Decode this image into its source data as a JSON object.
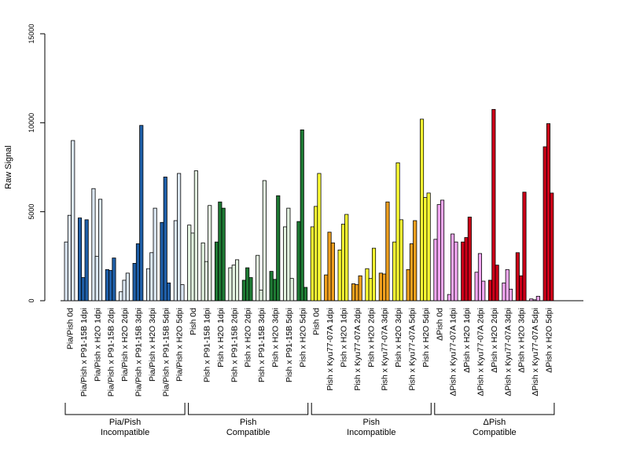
{
  "chart_data": {
    "type": "bar",
    "title": "",
    "xlabel": "",
    "ylabel": "Raw Signal",
    "ylim": [
      0,
      15000
    ],
    "yticks": [
      "0",
      "5000",
      "10000",
      "15000"
    ],
    "grid": false,
    "legend": "none",
    "categories": [
      "Pia/Pish 0d",
      "Pia/Pish x P91-15B 1dpi",
      "Pia/Pish x H2O 1dpi",
      "Pia/Pish x P91-15B 2dpi",
      "Pia/Pish x H2O 2dpi",
      "Pia/Pish x P91-15B 3dpi",
      "Pia/Pish x H2O 3dpi",
      "Pia/Pish x P91-15B 5dpi",
      "Pia/Pish x H2O 5dpi",
      "Pish 0d",
      "Pish x P91-15B 1dpi",
      "Pish x H2O 1dpi",
      "Pish x P91-15B 2dpi",
      "Pish x H2O 2dpi",
      "Pish x P91-15B 3dpi",
      "Pish x H2O 3dpi",
      "Pish x P91-15B 5dpi",
      "Pish x H2O 5dpi",
      "Pish 0d",
      "Pish x Kyu77-07A 1dpi",
      "Pish x H2O 1dpi",
      "Pish x Kyu77-07A 2dpi",
      "Pish x H2O 2dpi",
      "Pish x Kyu77-07A 3dpi",
      "Pish x H2O 3dpi",
      "Pish x Kyu77-07A 5dpi",
      "Pish x H2O 5dpi",
      "ΔPish 0d",
      "ΔPish x Kyu77-07A 1dpi",
      "ΔPish x H2O 1dpi",
      "ΔPish x Kyu77-07A 2dpi",
      "ΔPish x H2O 2dpi",
      "ΔPish x Kyu77-07A 3dpi",
      "ΔPish x H2O 3dpi",
      "ΔPish x Kyu77-07A 5dpi",
      "ΔPish x H2O 5dpi"
    ],
    "values": [
      [
        3300,
        4800,
        9000
      ],
      [
        4650,
        1300,
        4550
      ],
      [
        6300,
        2500,
        5700
      ],
      [
        1750,
        1700,
        2400
      ],
      [
        500,
        1150,
        1550
      ],
      [
        2100,
        3200,
        9850
      ],
      [
        1800,
        2700,
        5200
      ],
      [
        4400,
        6950,
        1000
      ],
      [
        4500,
        7150,
        900
      ],
      [
        4250,
        3800,
        7300
      ],
      [
        3250,
        2200,
        5350
      ],
      [
        3300,
        5550,
        5200
      ],
      [
        1850,
        2000,
        2300
      ],
      [
        1150,
        1850,
        1300
      ],
      [
        2550,
        600,
        6750
      ],
      [
        1650,
        1200,
        5900
      ],
      [
        4150,
        5200,
        1250
      ],
      [
        4450,
        9600,
        750
      ],
      [
        4150,
        5300,
        7150
      ],
      [
        1450,
        3850,
        3250
      ],
      [
        2850,
        4300,
        4850
      ],
      [
        950,
        900,
        1400
      ],
      [
        1800,
        1250,
        2950
      ],
      [
        1550,
        1500,
        5550
      ],
      [
        3300,
        7750,
        4550
      ],
      [
        1750,
        3200,
        4500
      ],
      [
        10200,
        5800,
        6050
      ],
      [
        3450,
        5400,
        5650
      ],
      [
        350,
        3750,
        3300
      ],
      [
        3300,
        3550,
        4700
      ],
      [
        1600,
        2650,
        1100
      ],
      [
        1150,
        10750,
        2000
      ],
      [
        1000,
        1750,
        650
      ],
      [
        2700,
        1400,
        6100
      ],
      [
        100,
        50,
        250
      ],
      [
        8650,
        9950,
        6050
      ]
    ],
    "group_colors": [
      "#1f5fa8",
      "#1e7a34",
      "#f0a01e",
      "#cc0018"
    ],
    "groups": [
      {
        "line1": "Pia/Pish",
        "line2": "Incompatible"
      },
      {
        "line1": "Pish",
        "line2": "Compatible"
      },
      {
        "line1": "Pish",
        "line2": "Incompatible"
      },
      {
        "line1": "ΔPish",
        "line2": "Compatible"
      }
    ]
  }
}
